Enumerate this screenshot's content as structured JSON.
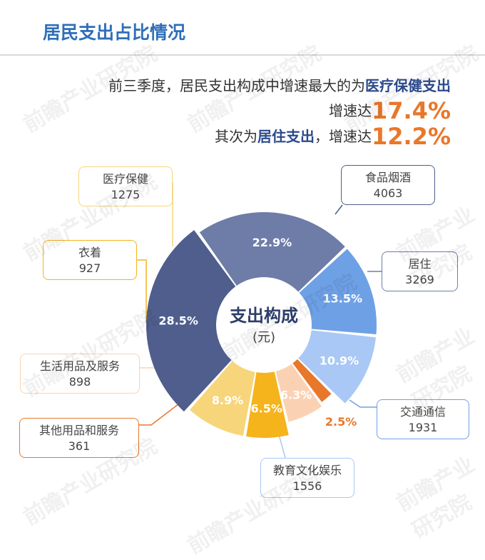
{
  "header": {
    "title": "居民支出占比情况"
  },
  "summary": {
    "line1_prefix": "前三季度，居民支出构成中增速最大的为",
    "line1_highlight": "医疗保健支出",
    "line2_prefix": "增速达",
    "line2_value": "17.4%",
    "line3_prefix": "其次为",
    "line3_highlight": "居住支出",
    "line3_mid": "，增速达",
    "line3_value": "12.2%"
  },
  "chart_data": {
    "type": "pie",
    "center_title": "支出构成",
    "center_unit": "(元)",
    "categories": [
      "食品烟酒",
      "居住",
      "交通通信",
      "教育文化娱乐",
      "其他用品和服务",
      "生活用品及服务",
      "衣着",
      "医疗保健"
    ],
    "values": [
      4063,
      3269,
      1931,
      1556,
      361,
      898,
      927,
      1275
    ],
    "percent_labels": [
      "28.5%",
      "22.9%",
      "13.5%",
      "10.9%",
      "2.5%",
      "6.3%",
      "6.5%",
      "8.9%"
    ],
    "colors": [
      "#4f5e8c",
      "#6e7ca8",
      "#6ea0e6",
      "#a9c8f5",
      "#e9772a",
      "#fad2b3",
      "#f5b31c",
      "#f7d57a"
    ]
  },
  "watermark": "前瞻产业研究院"
}
